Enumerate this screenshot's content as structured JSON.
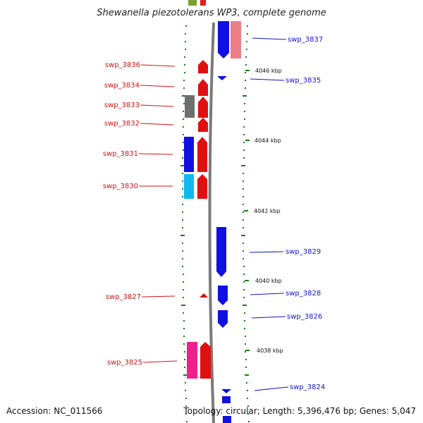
{
  "title": "Shewanella piezotolerans WP3, complete genome",
  "accession": "Accession: NC_011566",
  "summary": "Topology: circular; Length: 5,396,476 bp; Genes: 5,047",
  "colors": {
    "red_label": "#d21414",
    "blue_label": "#1414c8",
    "tick": "#1a7a1a",
    "backbone": "#777777"
  },
  "ticks": [
    {
      "label": "4046 kbp"
    },
    {
      "label": "4044 kbp"
    },
    {
      "label": "4042 kbp"
    },
    {
      "label": "4040 kbp"
    },
    {
      "label": "4038 kbp"
    }
  ],
  "left_labels": [
    "swp_3836",
    "swp_3834",
    "swp_3833",
    "swp_3832",
    "swp_3831",
    "swp_3830",
    "swp_3827",
    "swp_3825"
  ],
  "right_labels": [
    "swp_3837",
    "swp_3835",
    "swp_3829",
    "swp_3828",
    "swp_3826",
    "swp_3824"
  ]
}
